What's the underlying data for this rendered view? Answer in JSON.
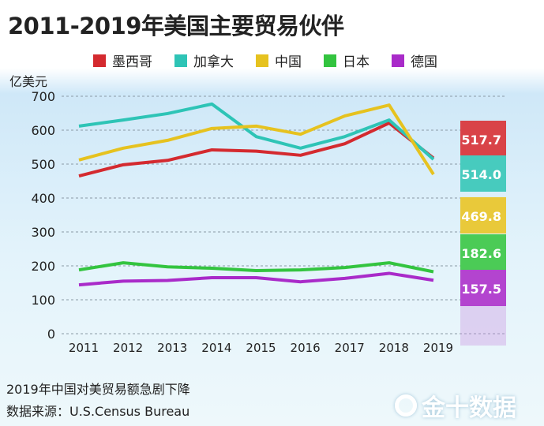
{
  "title": "2011-2019年美国主要贸易伙伴",
  "chart_data": {
    "type": "line",
    "title": "2011-2019年美国主要贸易伙伴",
    "ylabel": "亿美元",
    "ylim": [
      0,
      700
    ],
    "yticks": [
      0,
      100,
      200,
      300,
      400,
      500,
      600,
      700
    ],
    "grid": true,
    "legend_position": "top",
    "x": [
      "2011",
      "2012",
      "2013",
      "2014",
      "2015",
      "2016",
      "2017",
      "2018",
      "2019"
    ],
    "series": [
      {
        "name": "墨西哥",
        "color": "#d42a2f",
        "values": [
          465,
          498,
          511,
          542,
          538,
          526,
          560,
          621,
          517.7
        ],
        "end_label": "517.7"
      },
      {
        "name": "加拿大",
        "color": "#2ec4b6",
        "values": [
          612,
          630,
          649,
          677,
          581,
          547,
          581,
          630,
          514.0
        ],
        "end_label": "514.0"
      },
      {
        "name": "中国",
        "color": "#e6c21f",
        "values": [
          512,
          547,
          570,
          605,
          612,
          588,
          642,
          674,
          469.8
        ],
        "end_label": "469.8"
      },
      {
        "name": "日本",
        "color": "#33c43f",
        "values": [
          188,
          209,
          197,
          193,
          186,
          188,
          195,
          209,
          182.6
        ],
        "end_label": "182.6"
      },
      {
        "name": "德国",
        "color": "#a92bc9",
        "values": [
          144,
          155,
          157,
          165,
          165,
          153,
          163,
          178,
          157.5
        ],
        "end_label": "157.5"
      }
    ]
  },
  "footer": {
    "note": "2019年中国对美贸易额急剧下降",
    "source": "数据来源：U.S.Census Bureau"
  },
  "logo": "金十数据"
}
